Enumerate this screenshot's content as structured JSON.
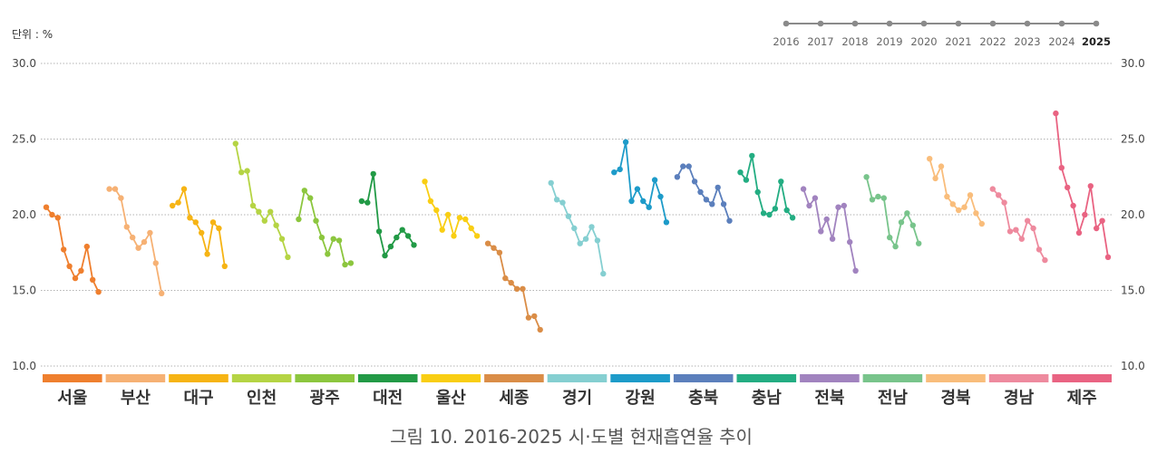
{
  "unit_label": "단위 : %",
  "caption": "그림 10.  2016-2025 시·도별 현재흡연율 추이",
  "chart_data": {
    "type": "line",
    "title": "",
    "xlabel": "",
    "ylabel": "",
    "ylim": [
      10.0,
      30.0
    ],
    "yticks": [
      "10.0",
      "15.0",
      "20.0",
      "25.0",
      "30.0"
    ],
    "grid": true,
    "legend": "top-right",
    "years": [
      "2016",
      "2017",
      "2018",
      "2019",
      "2020",
      "2021",
      "2022",
      "2023",
      "2024",
      "2025"
    ],
    "series": [
      {
        "name": "서울",
        "color": "#ef7f2e",
        "values": [
          20.5,
          20.0,
          19.8,
          17.7,
          16.6,
          15.8,
          16.3,
          17.9,
          15.7,
          14.9
        ]
      },
      {
        "name": "부산",
        "color": "#f6b174",
        "values": [
          21.7,
          21.7,
          21.1,
          19.2,
          18.5,
          17.8,
          18.2,
          18.8,
          16.8,
          14.8
        ]
      },
      {
        "name": "대구",
        "color": "#f6b414",
        "values": [
          20.6,
          20.8,
          21.7,
          19.8,
          19.5,
          18.8,
          17.4,
          19.5,
          19.1,
          16.6
        ]
      },
      {
        "name": "인천",
        "color": "#b5d444",
        "values": [
          24.7,
          22.8,
          22.9,
          20.6,
          20.2,
          19.6,
          20.2,
          19.3,
          18.4,
          17.2
        ]
      },
      {
        "name": "광주",
        "color": "#8cc63e",
        "values": [
          19.7,
          21.6,
          21.1,
          19.6,
          18.5,
          17.4,
          18.4,
          18.3,
          16.7,
          16.8
        ]
      },
      {
        "name": "대전",
        "color": "#229a46",
        "values": [
          20.9,
          20.8,
          22.7,
          18.9,
          17.3,
          17.9,
          18.5,
          19.0,
          18.6,
          18.0
        ]
      },
      {
        "name": "울산",
        "color": "#f9ce13",
        "values": [
          22.2,
          20.9,
          20.3,
          19.0,
          20.0,
          18.6,
          19.8,
          19.7,
          19.1,
          18.6
        ]
      },
      {
        "name": "세종",
        "color": "#da8d47",
        "values": [
          18.1,
          17.8,
          17.5,
          15.8,
          15.5,
          15.1,
          15.1,
          13.2,
          13.3,
          12.4
        ]
      },
      {
        "name": "경기",
        "color": "#85cfd1",
        "values": [
          22.1,
          21.0,
          20.8,
          19.9,
          19.1,
          18.1,
          18.4,
          19.2,
          18.3,
          16.1
        ]
      },
      {
        "name": "강원",
        "color": "#1d9bc9",
        "values": [
          22.8,
          23.0,
          24.8,
          20.9,
          21.7,
          20.9,
          20.5,
          22.3,
          21.2,
          19.5
        ]
      },
      {
        "name": "충북",
        "color": "#5b7fbc",
        "values": [
          22.5,
          23.2,
          23.2,
          22.2,
          21.5,
          21.0,
          20.7,
          21.8,
          20.7,
          19.6
        ]
      },
      {
        "name": "충남",
        "color": "#23ad82",
        "values": [
          22.8,
          22.3,
          23.9,
          21.5,
          20.1,
          20.0,
          20.4,
          22.2,
          20.3,
          19.8
        ]
      },
      {
        "name": "전북",
        "color": "#a183bf",
        "values": [
          21.7,
          20.6,
          21.1,
          18.9,
          19.7,
          18.4,
          20.5,
          20.6,
          18.2,
          16.3
        ]
      },
      {
        "name": "전남",
        "color": "#78c48b",
        "values": [
          22.5,
          21.0,
          21.2,
          21.1,
          18.5,
          17.9,
          19.5,
          20.1,
          19.3,
          18.1
        ]
      },
      {
        "name": "경북",
        "color": "#f9bd7b",
        "values": [
          23.7,
          22.4,
          23.2,
          21.2,
          20.7,
          20.3,
          20.5,
          21.3,
          20.1,
          19.4
        ]
      },
      {
        "name": "경남",
        "color": "#ee8a9e",
        "values": [
          21.7,
          21.3,
          20.8,
          18.9,
          19.0,
          18.4,
          19.6,
          19.1,
          17.7,
          17.0
        ]
      },
      {
        "name": "제주",
        "color": "#e96382",
        "values": [
          26.7,
          23.1,
          21.8,
          20.6,
          18.8,
          20.0,
          21.9,
          19.1,
          19.6,
          17.2
        ]
      }
    ]
  }
}
